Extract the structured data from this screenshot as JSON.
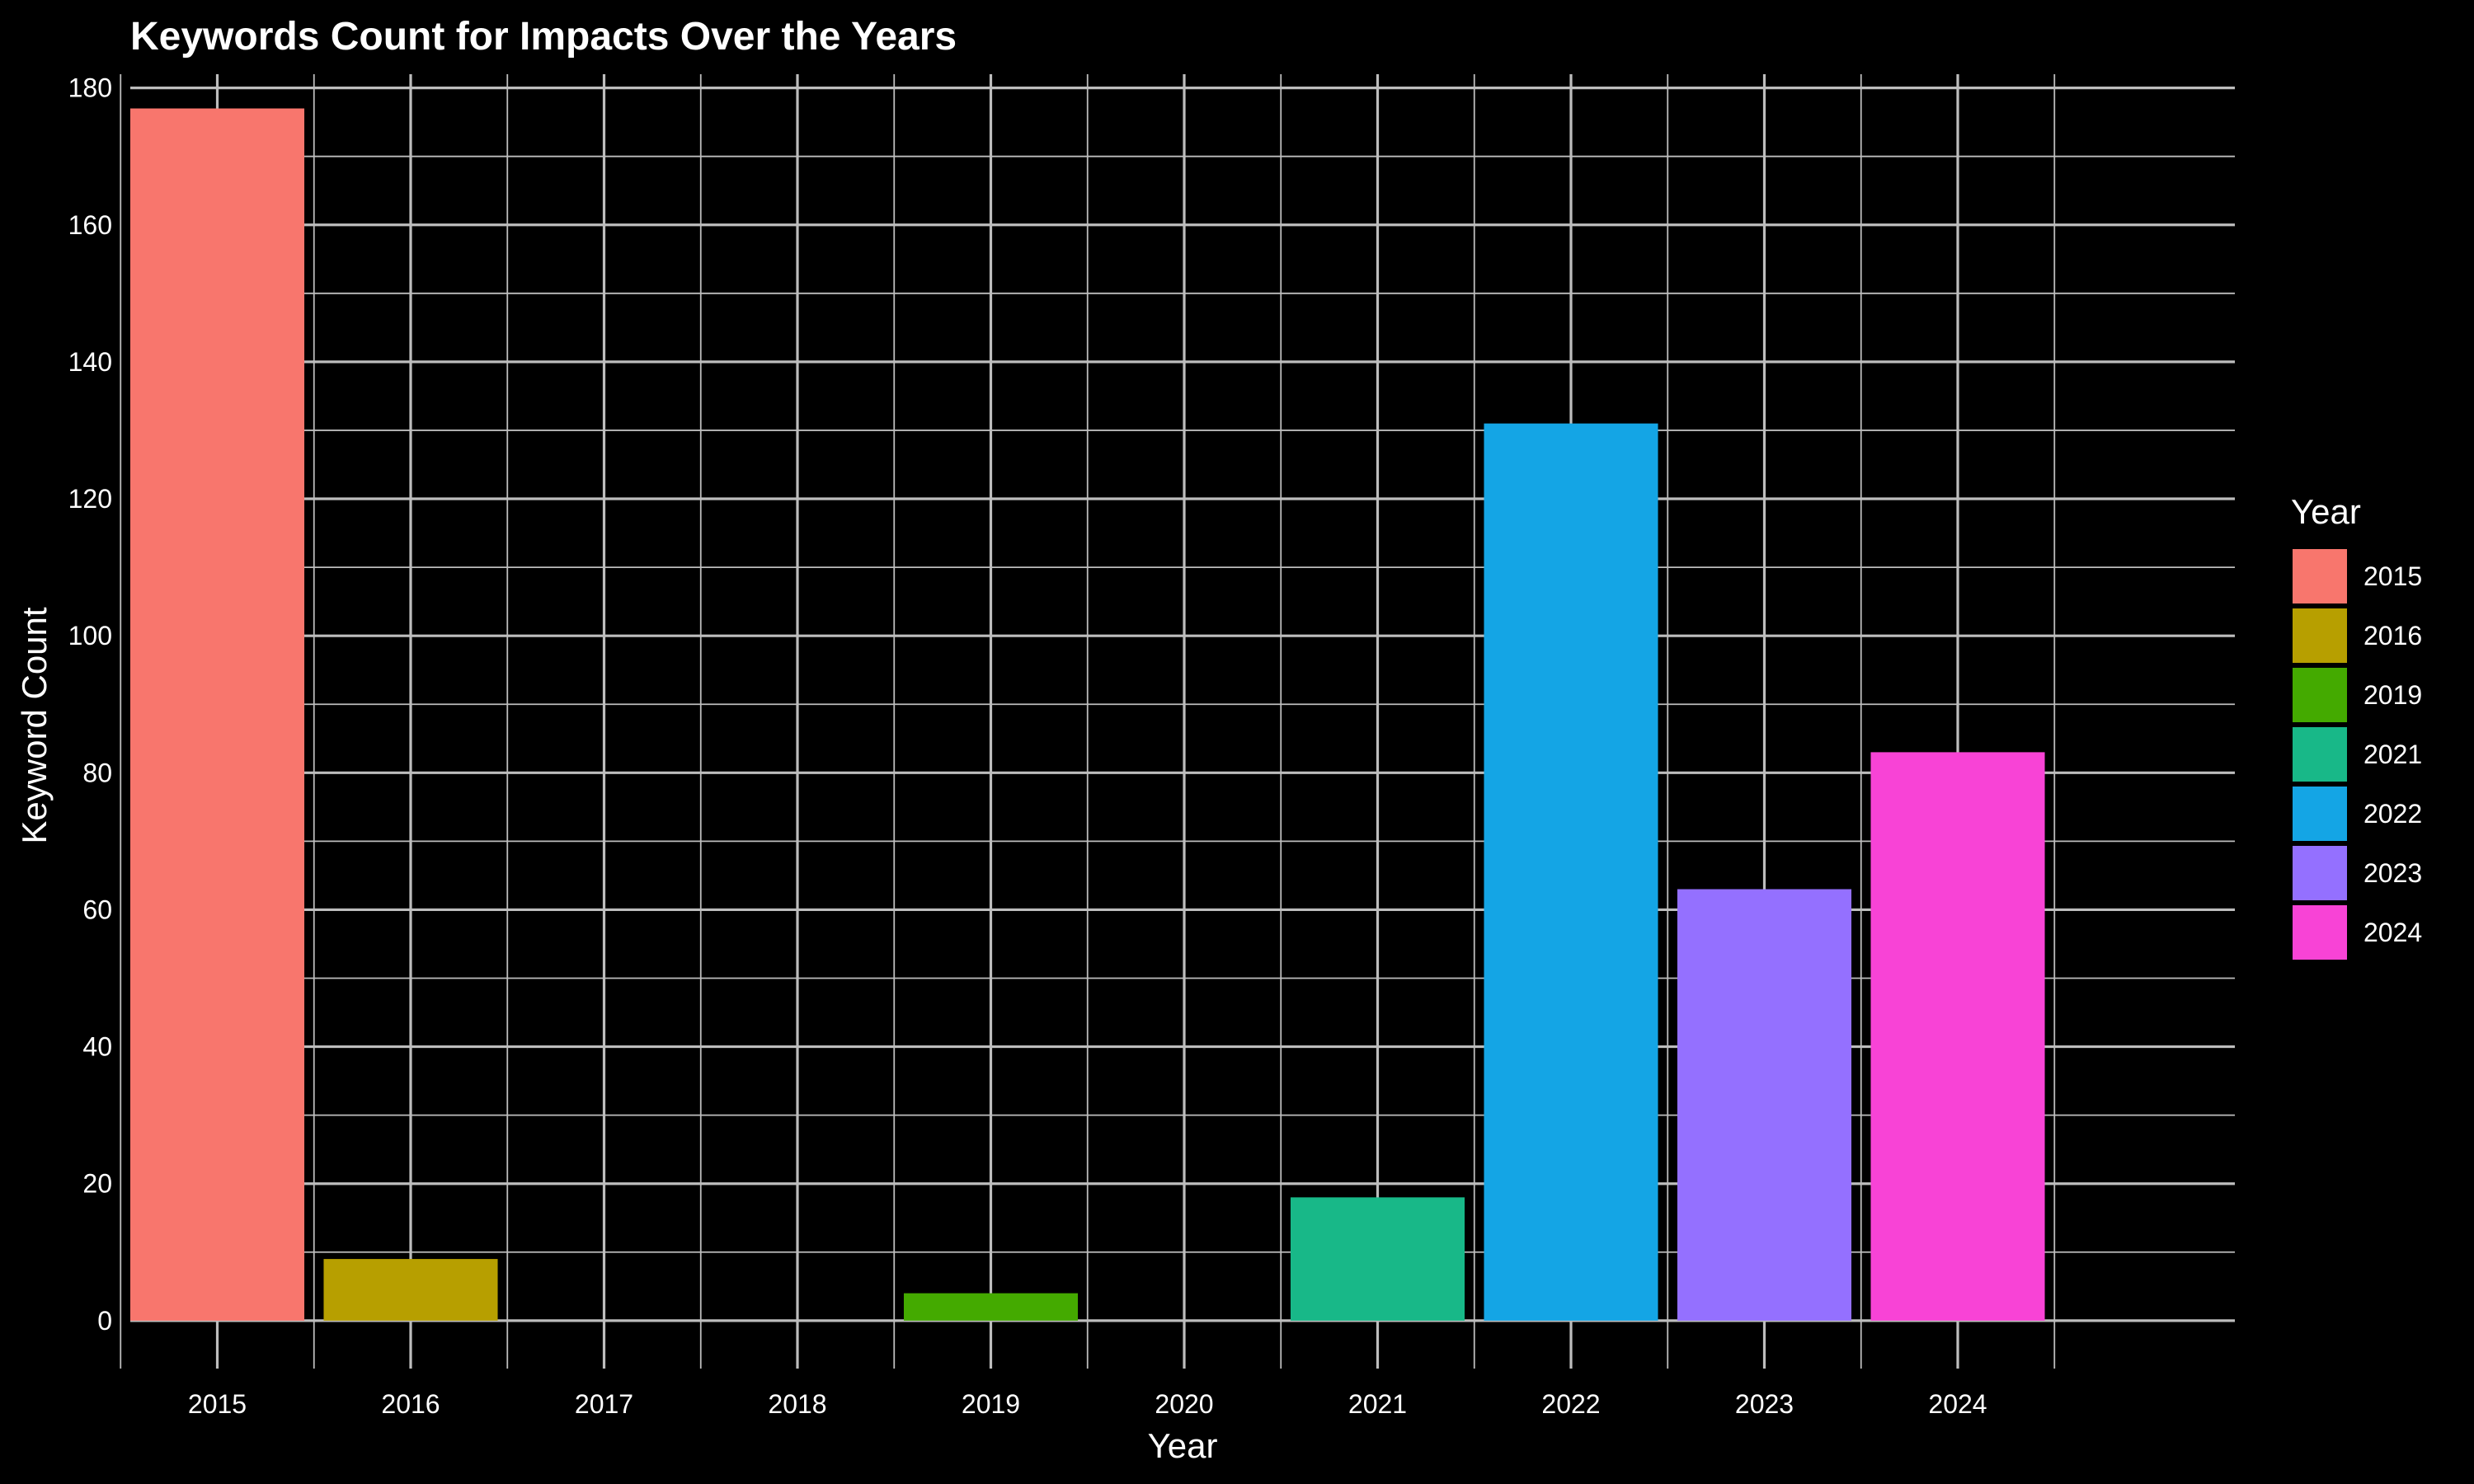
{
  "chart_data": {
    "type": "bar",
    "title": "Keywords Count for Impacts Over the Years",
    "xlabel": "Year",
    "ylabel": "Keyword Count",
    "categories": [
      "2015",
      "2016",
      "2017",
      "2018",
      "2019",
      "2020",
      "2021",
      "2022",
      "2023",
      "2024"
    ],
    "values": [
      177,
      9,
      0,
      0,
      4,
      0,
      18,
      131,
      63,
      83
    ],
    "ylim": [
      -7,
      182
    ],
    "y_ticks": [
      0,
      20,
      40,
      60,
      80,
      100,
      120,
      140,
      160,
      180
    ],
    "grid": true,
    "background": "#000000",
    "legend": {
      "title": "Year",
      "position": "right",
      "entries": [
        {
          "label": "2015",
          "color": "#F8766D"
        },
        {
          "label": "2016",
          "color": "#B79F00"
        },
        {
          "label": "2019",
          "color": "#44AA00"
        },
        {
          "label": "2021",
          "color": "#18B888"
        },
        {
          "label": "2022",
          "color": "#14A5E5"
        },
        {
          "label": "2023",
          "color": "#9470FF"
        },
        {
          "label": "2024",
          "color": "#F843D6"
        }
      ]
    },
    "bar_colors": {
      "2015": "#F8766D",
      "2016": "#B79F00",
      "2019": "#44AA00",
      "2021": "#18B888",
      "2022": "#14A5E5",
      "2023": "#9470FF",
      "2024": "#F843D6"
    }
  }
}
